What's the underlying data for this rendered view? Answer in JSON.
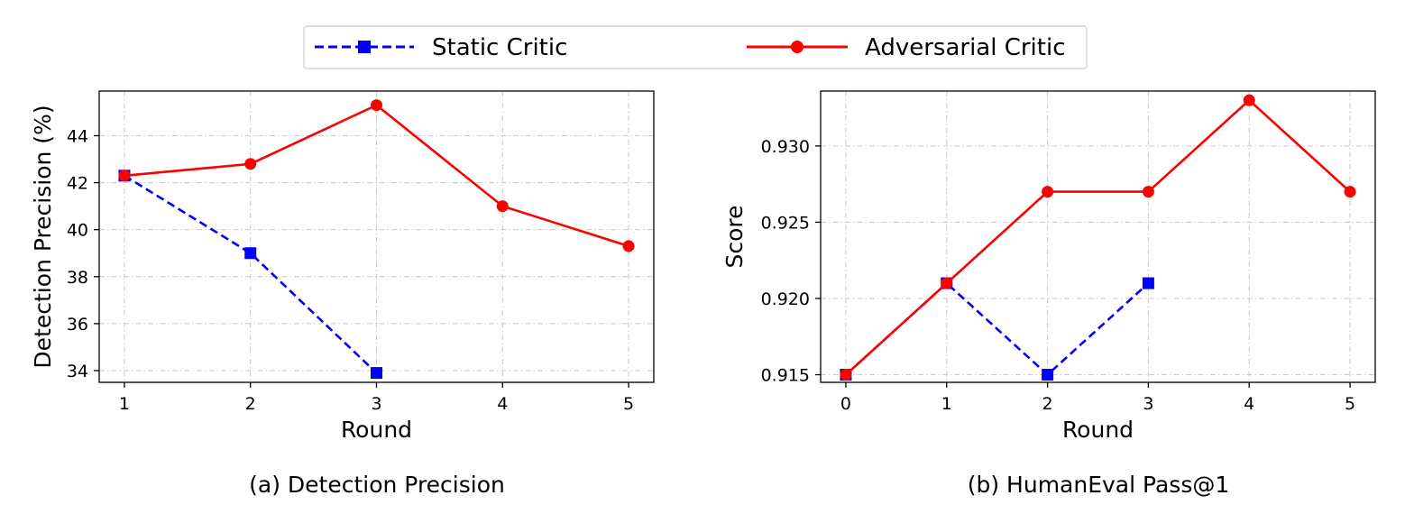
{
  "legend": {
    "entries": [
      {
        "label": "Static Critic",
        "color": "#0000ff",
        "marker": "square",
        "dash": true
      },
      {
        "label": "Adversarial Critic",
        "color": "#ff0000",
        "marker": "circle",
        "dash": false
      }
    ]
  },
  "chart_data": [
    {
      "type": "line",
      "caption": "(a) Detection Precision",
      "xlabel": "Round",
      "ylabel": "Detection Precision (%)",
      "xlim": [
        0.8,
        5.2
      ],
      "ylim": [
        33.5,
        45.9
      ],
      "xticks": [
        1,
        2,
        3,
        4,
        5
      ],
      "xtick_labels": [
        "1",
        "2",
        "3",
        "4",
        "5"
      ],
      "yticks": [
        34,
        36,
        38,
        40,
        42,
        44
      ],
      "ytick_labels": [
        "34",
        "36",
        "38",
        "40",
        "42",
        "44"
      ],
      "grid": true,
      "series": [
        {
          "name": "Static Critic",
          "color": "#0000ff",
          "marker": "square",
          "dash": true,
          "x": [
            1,
            2,
            3
          ],
          "y": [
            42.3,
            39.0,
            33.9
          ]
        },
        {
          "name": "Adversarial Critic",
          "color": "#ff0000",
          "marker": "circle",
          "dash": false,
          "x": [
            1,
            2,
            3,
            4,
            5
          ],
          "y": [
            42.3,
            42.8,
            45.3,
            41.0,
            39.3
          ]
        }
      ]
    },
    {
      "type": "line",
      "caption": "(b) HumanEval Pass@1",
      "xlabel": "Round",
      "ylabel": "Score",
      "xlim": [
        -0.25,
        5.25
      ],
      "ylim": [
        0.9145,
        0.9336
      ],
      "xticks": [
        0,
        1,
        2,
        3,
        4,
        5
      ],
      "xtick_labels": [
        "0",
        "1",
        "2",
        "3",
        "4",
        "5"
      ],
      "yticks": [
        0.915,
        0.92,
        0.925,
        0.93
      ],
      "ytick_labels": [
        "0.915",
        "0.920",
        "0.925",
        "0.930"
      ],
      "grid": true,
      "series": [
        {
          "name": "Static Critic",
          "color": "#0000ff",
          "marker": "square",
          "dash": true,
          "x": [
            0,
            1,
            2,
            3
          ],
          "y": [
            0.915,
            0.921,
            0.915,
            0.921
          ]
        },
        {
          "name": "Adversarial Critic",
          "color": "#ff0000",
          "marker": "circle",
          "dash": false,
          "x": [
            0,
            1,
            2,
            3,
            4,
            5
          ],
          "y": [
            0.915,
            0.921,
            0.927,
            0.927,
            0.933,
            0.927
          ]
        }
      ]
    }
  ]
}
